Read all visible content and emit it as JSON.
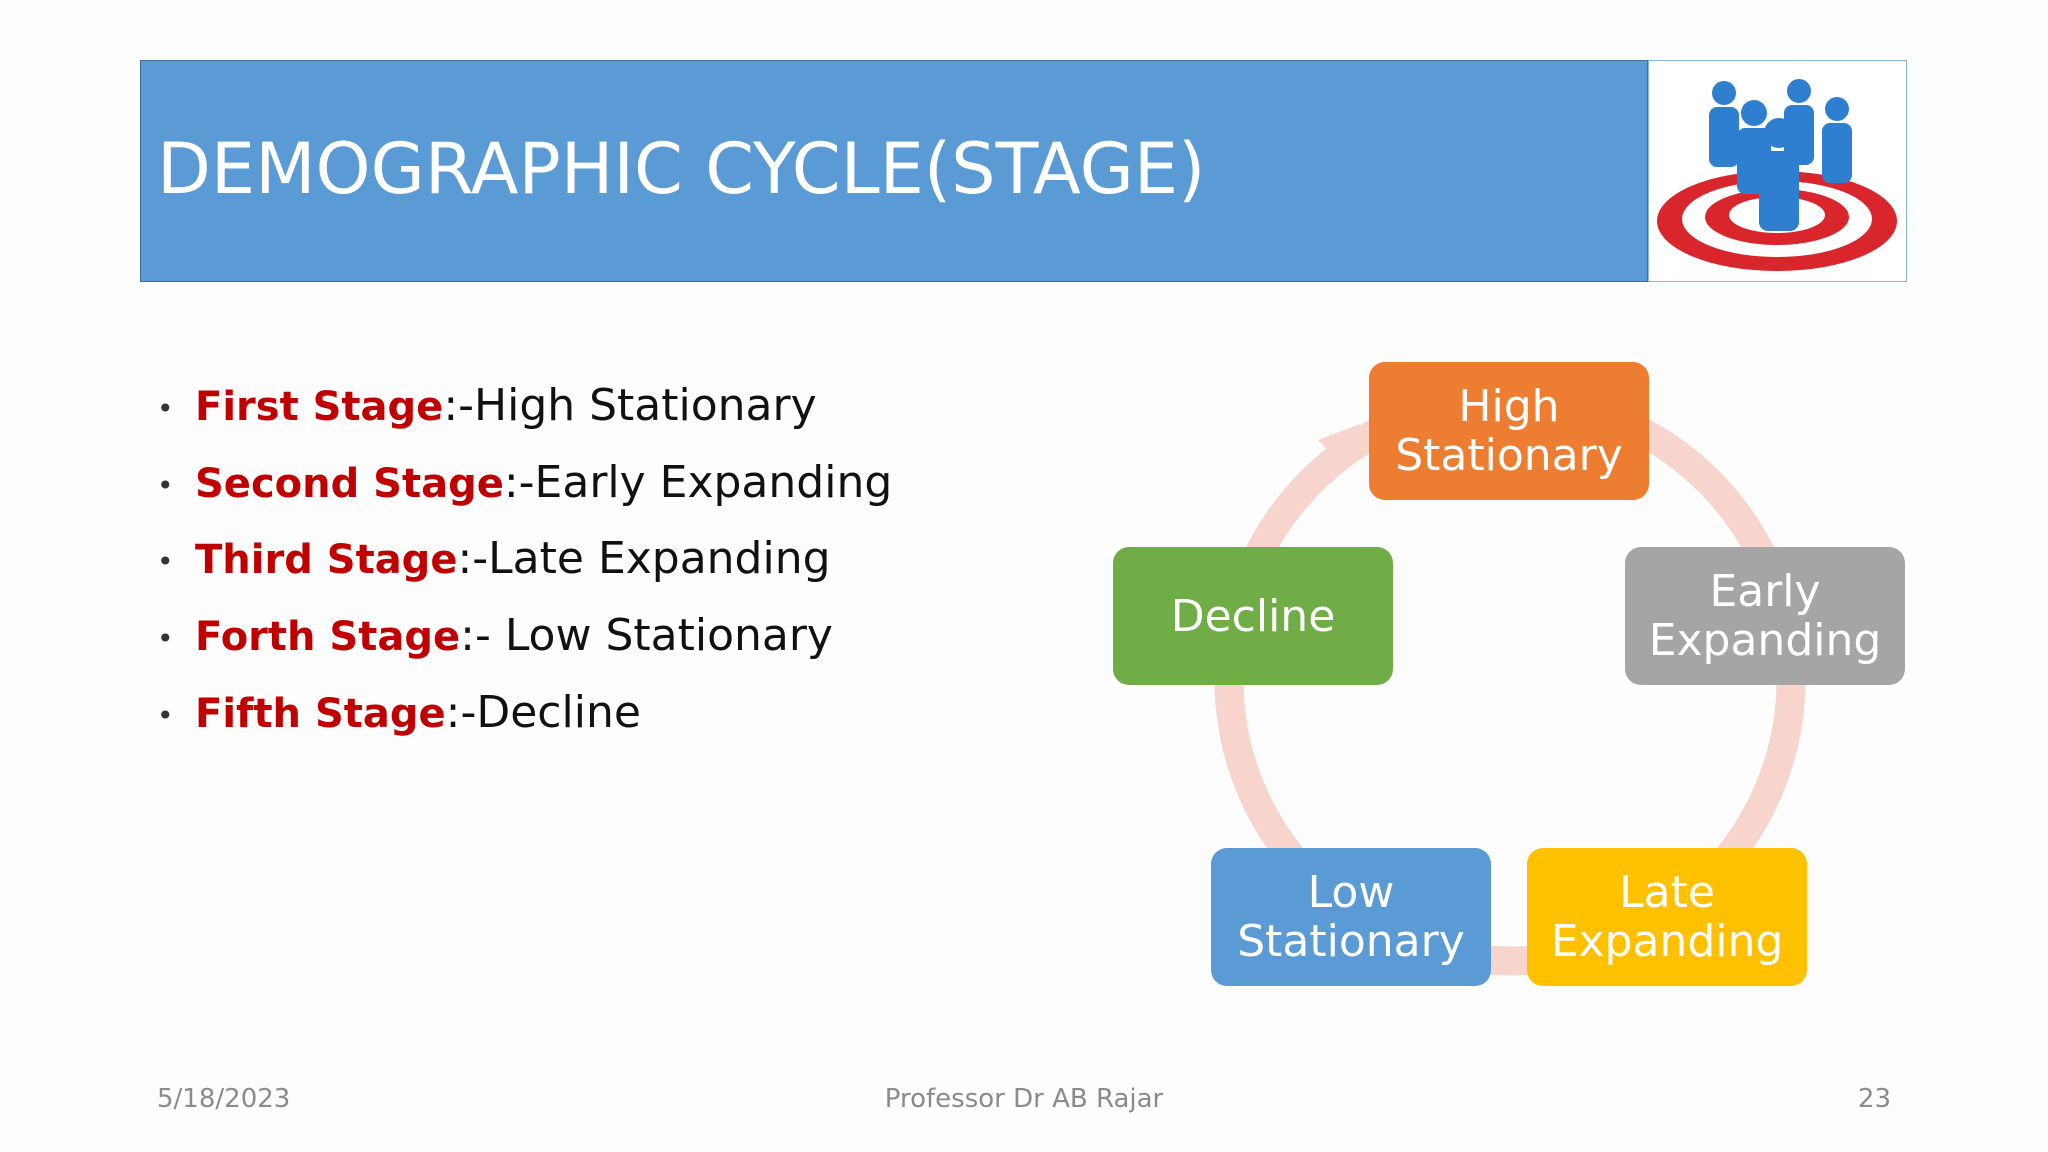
{
  "header": {
    "title": "DEMOGRAPHIC CYCLE(STAGE)"
  },
  "bullets": [
    {
      "label": "First Stage",
      "text": ":-High Stationary"
    },
    {
      "label": "Second Stage",
      "text": ":-Early Expanding"
    },
    {
      "label": "Third Stage",
      "text": ":-Late Expanding"
    },
    {
      "label": "Forth Stage",
      "text": ":- Low Stationary"
    },
    {
      "label": "Fifth Stage",
      "text": ":-Decline"
    }
  ],
  "nodes": [
    {
      "label": "High Stationary"
    },
    {
      "label": "Early Expanding"
    },
    {
      "label": "Late Expanding"
    },
    {
      "label": "Low Stationary"
    },
    {
      "label": "Decline"
    }
  ],
  "footer": {
    "date": "5/18/2023",
    "author": "Professor Dr AB Rajar",
    "page": "23"
  }
}
